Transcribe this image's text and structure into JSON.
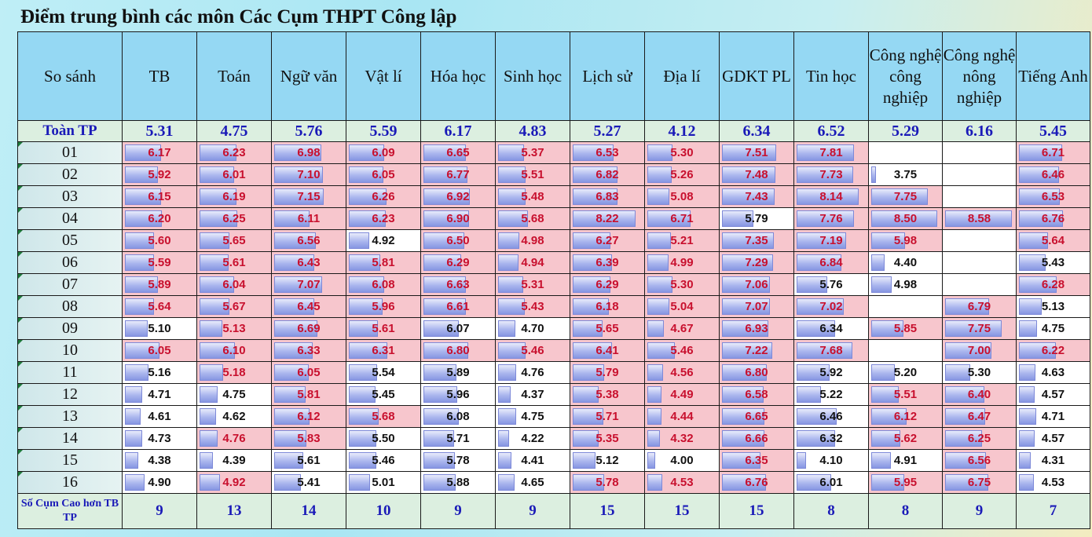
{
  "title": "Điểm trung bình các môn Các Cụm THPT Công lập",
  "header": {
    "compare_label": "So sánh",
    "subjects": [
      "TB",
      "Toán",
      "Ngữ văn",
      "Vật lí",
      "Hóa học",
      "Sinh học",
      "Lịch sử",
      "Địa lí",
      "GDKT PL",
      "Tin học",
      "Công nghệ công nghiệp",
      "Công nghệ nông nghiệp",
      "Tiếng Anh"
    ]
  },
  "city_avg": {
    "label": "Toàn TP",
    "values": [
      "5.31",
      "4.75",
      "5.76",
      "5.59",
      "6.17",
      "4.83",
      "5.27",
      "4.12",
      "6.34",
      "6.52",
      "5.29",
      "6.16",
      "5.45"
    ]
  },
  "clusters": [
    {
      "label": "01",
      "values": [
        "6.17",
        "6.23",
        "6.98",
        "6.09",
        "6.65",
        "5.37",
        "6.53",
        "5.30",
        "7.51",
        "7.81",
        "",
        "",
        "6.71"
      ]
    },
    {
      "label": "02",
      "values": [
        "5.92",
        "6.01",
        "7.10",
        "6.05",
        "6.77",
        "5.51",
        "6.82",
        "5.26",
        "7.48",
        "7.73",
        "3.75",
        "",
        "6.46"
      ]
    },
    {
      "label": "03",
      "values": [
        "6.15",
        "6.19",
        "7.15",
        "6.26",
        "6.92",
        "5.48",
        "6.83",
        "5.08",
        "7.43",
        "8.14",
        "7.75",
        "",
        "6.53"
      ]
    },
    {
      "label": "04",
      "values": [
        "6.20",
        "6.25",
        "6.11",
        "6.23",
        "6.90",
        "5.68",
        "8.22",
        "6.71",
        "5.79",
        "7.76",
        "8.50",
        "8.58",
        "6.76"
      ]
    },
    {
      "label": "05",
      "values": [
        "5.60",
        "5.65",
        "6.56",
        "4.92",
        "6.50",
        "4.98",
        "6.27",
        "5.21",
        "7.35",
        "7.19",
        "5.98",
        "",
        "5.64"
      ]
    },
    {
      "label": "06",
      "values": [
        "5.59",
        "5.61",
        "6.43",
        "5.81",
        "6.29",
        "4.94",
        "6.39",
        "4.99",
        "7.29",
        "6.84",
        "4.40",
        "",
        "5.43"
      ]
    },
    {
      "label": "07",
      "values": [
        "5.89",
        "6.04",
        "7.07",
        "6.08",
        "6.63",
        "5.31",
        "6.29",
        "5.30",
        "7.06",
        "5.76",
        "4.98",
        "",
        "6.28"
      ]
    },
    {
      "label": "08",
      "values": [
        "5.64",
        "5.67",
        "6.45",
        "5.96",
        "6.61",
        "5.43",
        "6.18",
        "5.04",
        "7.07",
        "7.02",
        "",
        "6.79",
        "5.13"
      ]
    },
    {
      "label": "09",
      "values": [
        "5.10",
        "5.13",
        "6.69",
        "5.61",
        "6.07",
        "4.70",
        "5.65",
        "4.67",
        "6.93",
        "6.34",
        "5.85",
        "7.75",
        "4.75"
      ]
    },
    {
      "label": "10",
      "values": [
        "6.05",
        "6.10",
        "6.33",
        "6.31",
        "6.80",
        "5.46",
        "6.41",
        "5.46",
        "7.22",
        "7.68",
        "",
        "7.00",
        "6.22"
      ]
    },
    {
      "label": "11",
      "values": [
        "5.16",
        "5.18",
        "6.05",
        "5.54",
        "5.89",
        "4.76",
        "5.79",
        "4.56",
        "6.80",
        "5.92",
        "5.20",
        "5.30",
        "4.63"
      ]
    },
    {
      "label": "12",
      "values": [
        "4.71",
        "4.75",
        "5.81",
        "5.45",
        "5.96",
        "4.37",
        "5.38",
        "4.49",
        "6.58",
        "5.22",
        "5.51",
        "6.40",
        "4.57"
      ]
    },
    {
      "label": "13",
      "values": [
        "4.61",
        "4.62",
        "6.12",
        "5.68",
        "6.08",
        "4.75",
        "5.71",
        "4.44",
        "6.65",
        "6.46",
        "6.12",
        "6.47",
        "4.71"
      ]
    },
    {
      "label": "14",
      "values": [
        "4.73",
        "4.76",
        "5.83",
        "5.50",
        "5.71",
        "4.22",
        "5.35",
        "4.32",
        "6.66",
        "6.32",
        "5.62",
        "6.25",
        "4.57"
      ]
    },
    {
      "label": "15",
      "values": [
        "4.38",
        "4.39",
        "5.61",
        "5.46",
        "5.78",
        "4.41",
        "5.12",
        "4.00",
        "6.35",
        "4.10",
        "4.91",
        "6.56",
        "4.31"
      ]
    },
    {
      "label": "16",
      "values": [
        "4.90",
        "4.92",
        "5.41",
        "5.01",
        "5.88",
        "4.65",
        "5.78",
        "4.53",
        "6.76",
        "6.01",
        "5.95",
        "6.75",
        "4.53"
      ]
    }
  ],
  "footer": {
    "label": "Số Cụm Cao hơn TB TP",
    "values": [
      "9",
      "13",
      "14",
      "10",
      "9",
      "9",
      "15",
      "15",
      "15",
      "8",
      "8",
      "9",
      "7"
    ]
  },
  "colors": {
    "above_city_text": "#c8102e",
    "above_city_fill": "#f7c6cd",
    "bar": "#8796e2",
    "header": "#95d8f3"
  }
}
